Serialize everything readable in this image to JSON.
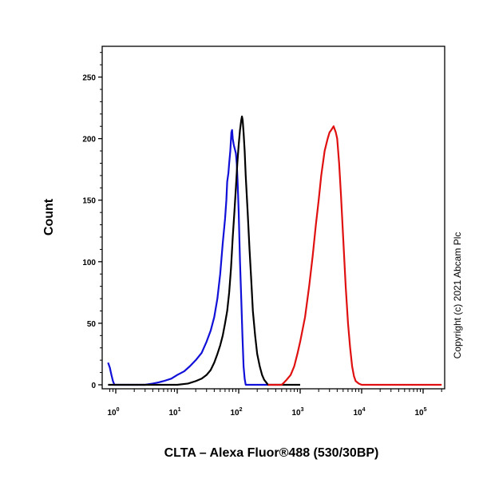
{
  "chart_data": {
    "type": "line",
    "xlabel": "CLTA – Alexa Fluor®488 (530/30BP)",
    "ylabel": "Count",
    "x_scale": "log",
    "xlim": [
      0.75,
      200000
    ],
    "ylim": [
      0,
      275
    ],
    "y_ticks": [
      0,
      50,
      100,
      150,
      200,
      250
    ],
    "x_tick_labels": [
      {
        "base": "10",
        "exp": "0",
        "value": 1
      },
      {
        "base": "10",
        "exp": "1",
        "value": 10
      },
      {
        "base": "10",
        "exp": "2",
        "value": 100
      },
      {
        "base": "10",
        "exp": "3",
        "value": 1000
      },
      {
        "base": "10",
        "exp": "4",
        "value": 10000
      },
      {
        "base": "10",
        "exp": "5",
        "value": 100000
      }
    ],
    "grid": false,
    "series": [
      {
        "color": "#1010d8",
        "points": [
          [
            0.75,
            18
          ],
          [
            0.8,
            14
          ],
          [
            0.85,
            8
          ],
          [
            0.9,
            3
          ],
          [
            0.95,
            0
          ],
          [
            1.2,
            0
          ],
          [
            3,
            0
          ],
          [
            4,
            1
          ],
          [
            5,
            2
          ],
          [
            6,
            3
          ],
          [
            8,
            5
          ],
          [
            10,
            8
          ],
          [
            13,
            11
          ],
          [
            16,
            15
          ],
          [
            20,
            20
          ],
          [
            25,
            26
          ],
          [
            30,
            35
          ],
          [
            35,
            44
          ],
          [
            40,
            55
          ],
          [
            45,
            70
          ],
          [
            50,
            90
          ],
          [
            55,
            115
          ],
          [
            60,
            135
          ],
          [
            63,
            150
          ],
          [
            65,
            165
          ],
          [
            68,
            172
          ],
          [
            70,
            180
          ],
          [
            73,
            190
          ],
          [
            76,
            205
          ],
          [
            78,
            207
          ],
          [
            80,
            200
          ],
          [
            83,
            195
          ],
          [
            86,
            192
          ],
          [
            88,
            190
          ],
          [
            90,
            188
          ],
          [
            93,
            180
          ],
          [
            96,
            165
          ],
          [
            100,
            140
          ],
          [
            105,
            100
          ],
          [
            110,
            70
          ],
          [
            115,
            40
          ],
          [
            120,
            15
          ],
          [
            125,
            5
          ],
          [
            130,
            0
          ],
          [
            300,
            0
          ]
        ]
      },
      {
        "color": "#000000",
        "points": [
          [
            0.75,
            0
          ],
          [
            10,
            0
          ],
          [
            15,
            1
          ],
          [
            20,
            3
          ],
          [
            25,
            5
          ],
          [
            30,
            8
          ],
          [
            35,
            12
          ],
          [
            40,
            18
          ],
          [
            45,
            25
          ],
          [
            50,
            32
          ],
          [
            55,
            40
          ],
          [
            60,
            50
          ],
          [
            65,
            60
          ],
          [
            70,
            75
          ],
          [
            75,
            95
          ],
          [
            80,
            120
          ],
          [
            85,
            140
          ],
          [
            90,
            160
          ],
          [
            95,
            180
          ],
          [
            100,
            195
          ],
          [
            105,
            207
          ],
          [
            110,
            215
          ],
          [
            113,
            218
          ],
          [
            116,
            215
          ],
          [
            120,
            205
          ],
          [
            125,
            190
          ],
          [
            130,
            170
          ],
          [
            140,
            140
          ],
          [
            150,
            110
          ],
          [
            160,
            85
          ],
          [
            170,
            60
          ],
          [
            185,
            40
          ],
          [
            200,
            25
          ],
          [
            220,
            15
          ],
          [
            240,
            8
          ],
          [
            260,
            4
          ],
          [
            280,
            2
          ],
          [
            300,
            0
          ],
          [
            1000,
            0
          ]
        ]
      },
      {
        "color": "#e01010",
        "points": [
          [
            300,
            0
          ],
          [
            500,
            0
          ],
          [
            550,
            2
          ],
          [
            600,
            4
          ],
          [
            700,
            8
          ],
          [
            800,
            15
          ],
          [
            900,
            25
          ],
          [
            1000,
            35
          ],
          [
            1200,
            55
          ],
          [
            1400,
            80
          ],
          [
            1600,
            105
          ],
          [
            1800,
            130
          ],
          [
            2000,
            150
          ],
          [
            2200,
            170
          ],
          [
            2500,
            190
          ],
          [
            2800,
            200
          ],
          [
            3000,
            205
          ],
          [
            3200,
            207
          ],
          [
            3500,
            210
          ],
          [
            3800,
            205
          ],
          [
            4000,
            200
          ],
          [
            4300,
            180
          ],
          [
            4600,
            155
          ],
          [
            5000,
            120
          ],
          [
            5500,
            80
          ],
          [
            6000,
            50
          ],
          [
            6500,
            30
          ],
          [
            7000,
            15
          ],
          [
            7500,
            7
          ],
          [
            8000,
            3
          ],
          [
            9000,
            1
          ],
          [
            10000,
            0
          ],
          [
            200000,
            0
          ]
        ]
      }
    ]
  },
  "copyright": "Copyright (c) 2021 Abcam Plc"
}
